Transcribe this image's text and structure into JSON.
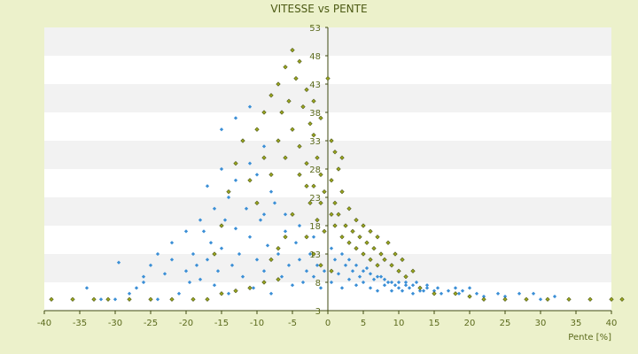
{
  "chart_data": {
    "type": "scatter",
    "title": "VITESSE vs PENTE",
    "xlabel": "Pente [%]",
    "ylabel": "",
    "xlim": [
      -40,
      40
    ],
    "ylim": [
      3,
      53
    ],
    "x_ticks": [
      -40,
      -35,
      -30,
      -25,
      -20,
      -15,
      -10,
      -5,
      0,
      5,
      10,
      15,
      20,
      25,
      30,
      35,
      40
    ],
    "y_ticks_labeled": [
      3,
      8,
      13,
      18,
      23,
      28,
      33,
      38,
      43,
      48,
      53
    ],
    "grid": "horizontal bands",
    "colors": {
      "series_a": "#3b8fd6",
      "series_b": "#9aa51e",
      "background": "#ecf1cb",
      "plot": "#ffffff",
      "band": "#f2f2f2",
      "axis": "#3f4a10"
    },
    "series": [
      {
        "color": "#3b8fd6",
        "points": [
          [
            -34,
            7
          ],
          [
            -32,
            5
          ],
          [
            -30,
            5
          ],
          [
            -29.5,
            11.5
          ],
          [
            -27,
            7
          ],
          [
            -26,
            8
          ],
          [
            -25,
            11
          ],
          [
            -24,
            5
          ],
          [
            -23,
            9.5
          ],
          [
            -22,
            12
          ],
          [
            -21,
            6
          ],
          [
            -20,
            10
          ],
          [
            -19.5,
            8
          ],
          [
            -19,
            13
          ],
          [
            -18.5,
            11
          ],
          [
            -18,
            8.5
          ],
          [
            -17.5,
            17
          ],
          [
            -17,
            12
          ],
          [
            -16.5,
            15
          ],
          [
            -16,
            7.5
          ],
          [
            -15.5,
            10
          ],
          [
            -15,
            14
          ],
          [
            -14.5,
            19
          ],
          [
            -14,
            6
          ],
          [
            -13.5,
            11
          ],
          [
            -13,
            17.5
          ],
          [
            -12.5,
            13
          ],
          [
            -12,
            9
          ],
          [
            -11.5,
            21
          ],
          [
            -11,
            16
          ],
          [
            -10.5,
            7
          ],
          [
            -10,
            12
          ],
          [
            -9.5,
            19
          ],
          [
            -9,
            10
          ],
          [
            -8.5,
            14.5
          ],
          [
            -8,
            6
          ],
          [
            -7.5,
            22
          ],
          [
            -7,
            13
          ],
          [
            -6.5,
            9
          ],
          [
            -6,
            17
          ],
          [
            -5.5,
            11
          ],
          [
            -5,
            7.5
          ],
          [
            -4.5,
            15
          ],
          [
            -4,
            12
          ],
          [
            -3.5,
            8
          ],
          [
            -3,
            10
          ],
          [
            -2.5,
            13
          ],
          [
            -2,
            9
          ],
          [
            -1.5,
            11
          ],
          [
            -1,
            7
          ],
          [
            -0.5,
            10
          ],
          [
            0.5,
            8
          ],
          [
            1,
            12
          ],
          [
            1.5,
            9.5
          ],
          [
            2,
            7
          ],
          [
            2.5,
            11
          ],
          [
            3,
            8.5
          ],
          [
            3.5,
            10
          ],
          [
            4,
            7.5
          ],
          [
            4.5,
            9
          ],
          [
            5,
            8
          ],
          [
            5.5,
            10.5
          ],
          [
            6,
            7
          ],
          [
            6.5,
            8.5
          ],
          [
            7,
            6.5
          ],
          [
            7.5,
            9
          ],
          [
            8,
            7.5
          ],
          [
            8.5,
            8
          ],
          [
            9,
            6.5
          ],
          [
            9.5,
            7.5
          ],
          [
            10,
            8
          ],
          [
            10.5,
            6.5
          ],
          [
            11,
            7.5
          ],
          [
            11.5,
            7
          ],
          [
            12,
            6
          ],
          [
            12.5,
            8
          ],
          [
            13,
            7
          ],
          [
            13.5,
            6.5
          ],
          [
            14,
            7.5
          ],
          [
            15,
            6.5
          ],
          [
            15.5,
            7
          ],
          [
            16,
            6
          ],
          [
            17,
            6.5
          ],
          [
            18,
            7
          ],
          [
            18.5,
            6
          ],
          [
            19,
            6.5
          ],
          [
            20,
            7
          ],
          [
            21,
            6
          ],
          [
            22,
            5.5
          ],
          [
            24,
            6
          ],
          [
            25,
            5.5
          ],
          [
            27,
            6
          ],
          [
            29,
            6
          ],
          [
            30,
            5
          ],
          [
            32,
            5.5
          ],
          [
            -22,
            15
          ],
          [
            -20,
            17
          ],
          [
            -18,
            19
          ],
          [
            -16,
            21
          ],
          [
            -14,
            23
          ],
          [
            -13,
            26
          ],
          [
            -11,
            29
          ],
          [
            -9,
            32
          ],
          [
            -15,
            35
          ],
          [
            -13,
            37
          ],
          [
            -11,
            39
          ],
          [
            -12,
            33
          ],
          [
            -10,
            27
          ],
          [
            -8,
            24
          ],
          [
            -6,
            20
          ],
          [
            -4,
            18
          ],
          [
            -2,
            16
          ],
          [
            0.5,
            14
          ],
          [
            2,
            13
          ],
          [
            3,
            12
          ],
          [
            4,
            11
          ],
          [
            5,
            10
          ],
          [
            6,
            9.5
          ],
          [
            7,
            9
          ],
          [
            8,
            8.5
          ],
          [
            9,
            8
          ],
          [
            10,
            7
          ],
          [
            11,
            8
          ],
          [
            12,
            7.5
          ],
          [
            13,
            6.5
          ],
          [
            14,
            7
          ],
          [
            -24,
            13
          ],
          [
            -26,
            9
          ],
          [
            -28,
            6
          ],
          [
            -17,
            25
          ],
          [
            -15,
            28
          ],
          [
            -9,
            20
          ]
        ]
      },
      {
        "color": "#9aa51e",
        "points": [
          [
            -39,
            5
          ],
          [
            -36,
            5
          ],
          [
            -33,
            5
          ],
          [
            -31,
            5
          ],
          [
            -28,
            5
          ],
          [
            -25,
            5
          ],
          [
            -22,
            5
          ],
          [
            -19,
            5
          ],
          [
            -17,
            5
          ],
          [
            -15,
            6
          ],
          [
            -13,
            6.5
          ],
          [
            -11,
            7
          ],
          [
            -9,
            8
          ],
          [
            -7,
            8.5
          ],
          [
            -16,
            13
          ],
          [
            -15,
            18
          ],
          [
            -14,
            24
          ],
          [
            -13,
            29
          ],
          [
            -12,
            33
          ],
          [
            -11,
            26
          ],
          [
            -10,
            22
          ],
          [
            -10,
            35
          ],
          [
            -9,
            30
          ],
          [
            -9,
            38
          ],
          [
            -8,
            27
          ],
          [
            -8,
            41
          ],
          [
            -7,
            33
          ],
          [
            -7,
            43
          ],
          [
            -6.5,
            38
          ],
          [
            -6,
            46
          ],
          [
            -6,
            30
          ],
          [
            -5.5,
            40
          ],
          [
            -5,
            49
          ],
          [
            -5,
            35
          ],
          [
            -4.5,
            44
          ],
          [
            -4,
            32
          ],
          [
            -4,
            47
          ],
          [
            -3.5,
            39
          ],
          [
            -3,
            42
          ],
          [
            -3,
            29
          ],
          [
            -2.5,
            36
          ],
          [
            -2,
            34
          ],
          [
            -2,
            25
          ],
          [
            -1.5,
            30
          ],
          [
            -1,
            27
          ],
          [
            -1,
            22
          ],
          [
            -0.5,
            24
          ],
          [
            0.5,
            26
          ],
          [
            0.5,
            20
          ],
          [
            1,
            22
          ],
          [
            1,
            18
          ],
          [
            1.5,
            20
          ],
          [
            2,
            16
          ],
          [
            2,
            24
          ],
          [
            2.5,
            18
          ],
          [
            3,
            15
          ],
          [
            3,
            21
          ],
          [
            3.5,
            17
          ],
          [
            4,
            14
          ],
          [
            4,
            19
          ],
          [
            4.5,
            16
          ],
          [
            5,
            13
          ],
          [
            5,
            18
          ],
          [
            5.5,
            15
          ],
          [
            6,
            12
          ],
          [
            6,
            17
          ],
          [
            6.5,
            14
          ],
          [
            7,
            11
          ],
          [
            7,
            16
          ],
          [
            7.5,
            13
          ],
          [
            8,
            12
          ],
          [
            8.5,
            15
          ],
          [
            9,
            11
          ],
          [
            9.5,
            13
          ],
          [
            10,
            10
          ],
          [
            10.5,
            12
          ],
          [
            11,
            9
          ],
          [
            12,
            10
          ],
          [
            -2,
            40
          ],
          [
            -1,
            37
          ],
          [
            0,
            44
          ],
          [
            0.5,
            33
          ],
          [
            1,
            31
          ],
          [
            1.5,
            28
          ],
          [
            2,
            30
          ],
          [
            -5,
            20
          ],
          [
            -6,
            16
          ],
          [
            -7,
            14
          ],
          [
            -8,
            12
          ],
          [
            -3,
            16
          ],
          [
            -2,
            13
          ],
          [
            -1,
            11
          ],
          [
            0.5,
            10
          ],
          [
            -4,
            27
          ],
          [
            -3,
            25
          ],
          [
            -2.5,
            22
          ],
          [
            -1.5,
            19
          ],
          [
            -0.5,
            17
          ],
          [
            13,
            7
          ],
          [
            15,
            6
          ],
          [
            18,
            6
          ],
          [
            20,
            5.5
          ],
          [
            22,
            5
          ],
          [
            25,
            5
          ],
          [
            28,
            5
          ],
          [
            31,
            5
          ],
          [
            34,
            5
          ],
          [
            37,
            5
          ],
          [
            40,
            5
          ],
          [
            41.5,
            5
          ]
        ]
      }
    ]
  }
}
